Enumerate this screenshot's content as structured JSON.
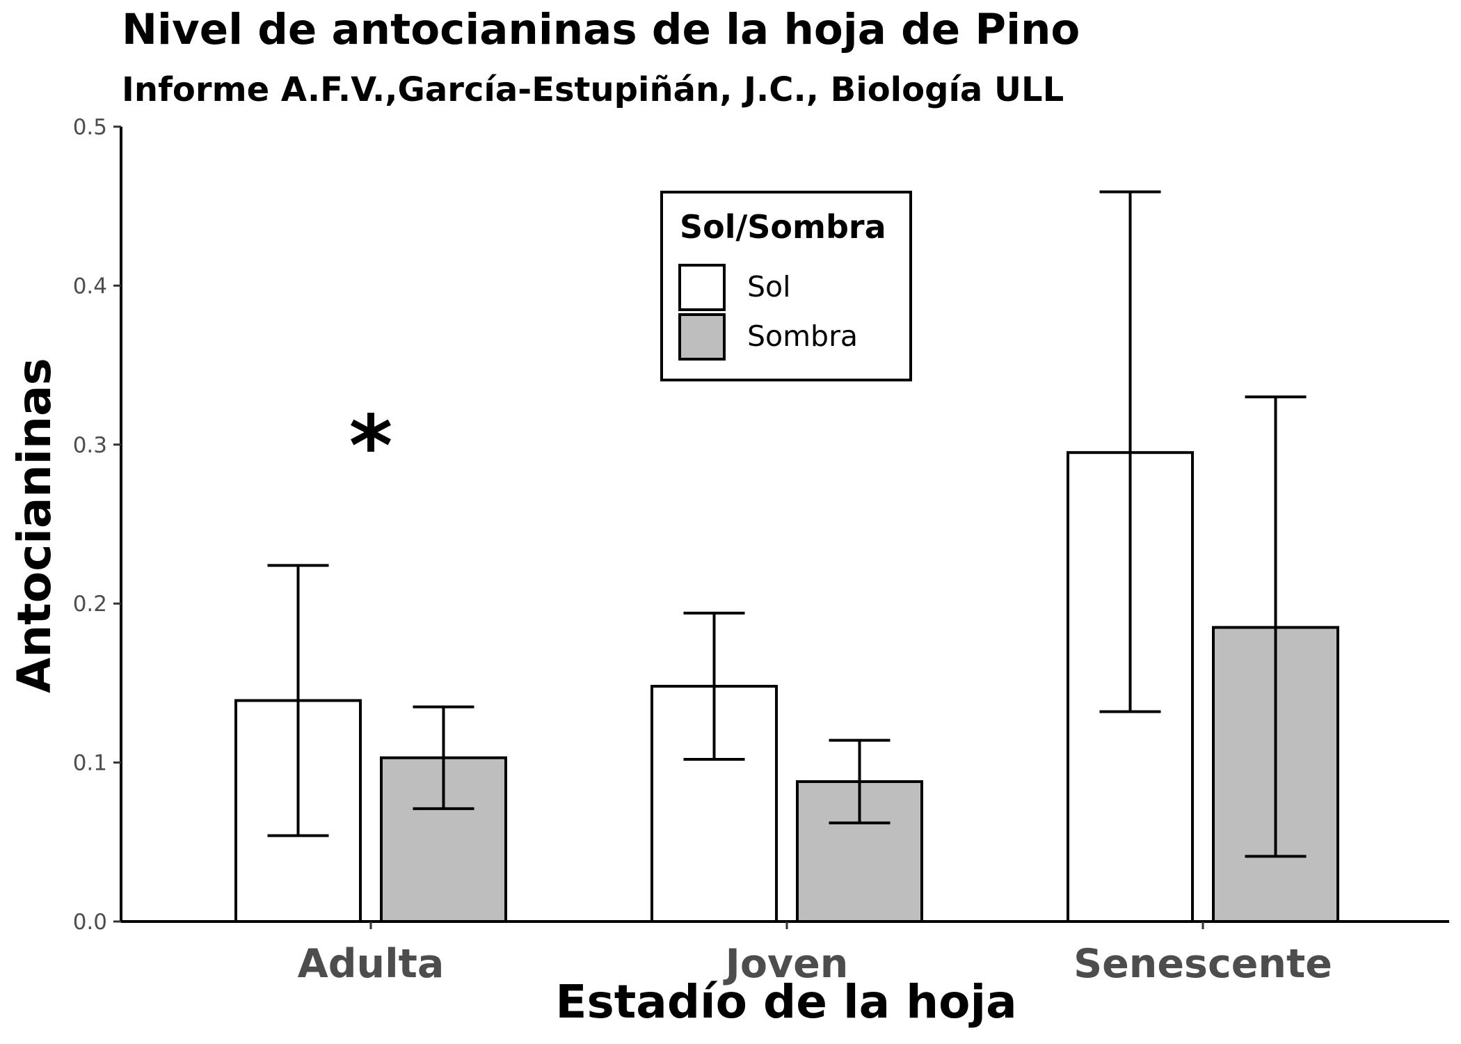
{
  "chart_data": {
    "type": "bar",
    "title": "Nivel de antocianinas de la hoja de Pino",
    "subtitle": "Informe A.F.V.,García-Estupiñán, J.C., Biología ULL",
    "xlabel": "Estadío de la hoja",
    "ylabel": "Antocianinas",
    "categories": [
      "Adulta",
      "Joven",
      "Senescente"
    ],
    "ylim": [
      0,
      0.5
    ],
    "yticks": [
      "0.0",
      "0.1",
      "0.2",
      "0.3",
      "0.4",
      "0.5"
    ],
    "grid": false,
    "legend": {
      "title": "Sol/Sombra",
      "placement": "top-center"
    },
    "series": [
      {
        "name": "Sol",
        "color": "#ffffff",
        "values": [
          0.139,
          0.148,
          0.295
        ],
        "error_low": [
          0.054,
          0.102,
          0.132
        ],
        "error_high": [
          0.224,
          0.194,
          0.459
        ]
      },
      {
        "name": "Sombra",
        "color": "#bebebe",
        "values": [
          0.103,
          0.088,
          0.185
        ],
        "error_low": [
          0.071,
          0.062,
          0.041
        ],
        "error_high": [
          0.135,
          0.114,
          0.33
        ]
      }
    ],
    "annotations": [
      {
        "text": "*",
        "category": "Adulta",
        "y": 0.305
      }
    ]
  }
}
